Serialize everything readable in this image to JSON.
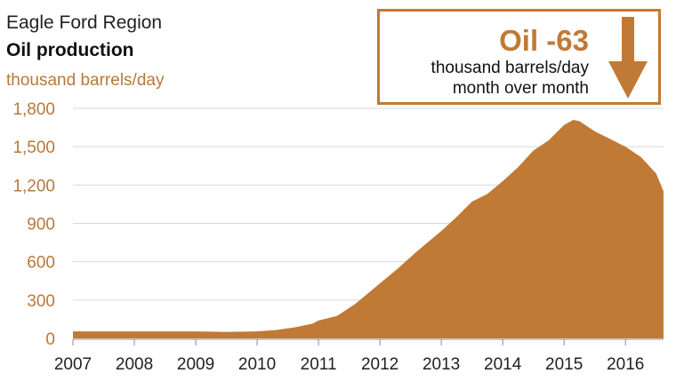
{
  "header": {
    "region": "Eagle Ford Region",
    "metric": "Oil production",
    "unit": "thousand barrels/day"
  },
  "callout": {
    "headline": "Oil -63",
    "line1": "thousand barrels/day",
    "line2": "month over month",
    "icon": "down-arrow-icon"
  },
  "colors": {
    "accent": "#c07a35",
    "axis_text": "#b8783a",
    "grid": "#d9d9d9"
  },
  "chart_data": {
    "type": "area",
    "title": "",
    "xlabel": "",
    "ylabel": "thousand barrels/day",
    "ylim": [
      0,
      1800
    ],
    "xlim": [
      2007,
      2016.62
    ],
    "yticks": [
      0,
      300,
      600,
      900,
      1200,
      1500,
      1800
    ],
    "ytick_labels": [
      "0",
      "300",
      "600",
      "900",
      "1,200",
      "1,500",
      "1,800"
    ],
    "xticks": [
      2007,
      2008,
      2009,
      2010,
      2011,
      2012,
      2013,
      2014,
      2015,
      2016
    ],
    "xtick_labels": [
      "2007",
      "2008",
      "2009",
      "2010",
      "2011",
      "2012",
      "2013",
      "2014",
      "2015",
      "2016"
    ],
    "grid": true,
    "series": [
      {
        "x": [
          2007,
          2007.5,
          2008,
          2008.5,
          2009,
          2009.5,
          2010,
          2010.3,
          2010.6,
          2010.9,
          2011,
          2011.3,
          2011.6,
          2011.9,
          2012,
          2012.3,
          2012.6,
          2012.9,
          2013,
          2013.25,
          2013.5,
          2013.75,
          2014,
          2014.25,
          2014.5,
          2014.75,
          2015,
          2015.15,
          2015.25,
          2015.5,
          2015.75,
          2016,
          2016.25,
          2016.5,
          2016.62
        ],
        "values": [
          55,
          55,
          55,
          55,
          55,
          50,
          55,
          65,
          85,
          115,
          140,
          175,
          270,
          390,
          430,
          550,
          680,
          800,
          840,
          950,
          1070,
          1130,
          1230,
          1340,
          1470,
          1550,
          1670,
          1710,
          1700,
          1620,
          1560,
          1500,
          1420,
          1290,
          1150
        ]
      }
    ]
  }
}
